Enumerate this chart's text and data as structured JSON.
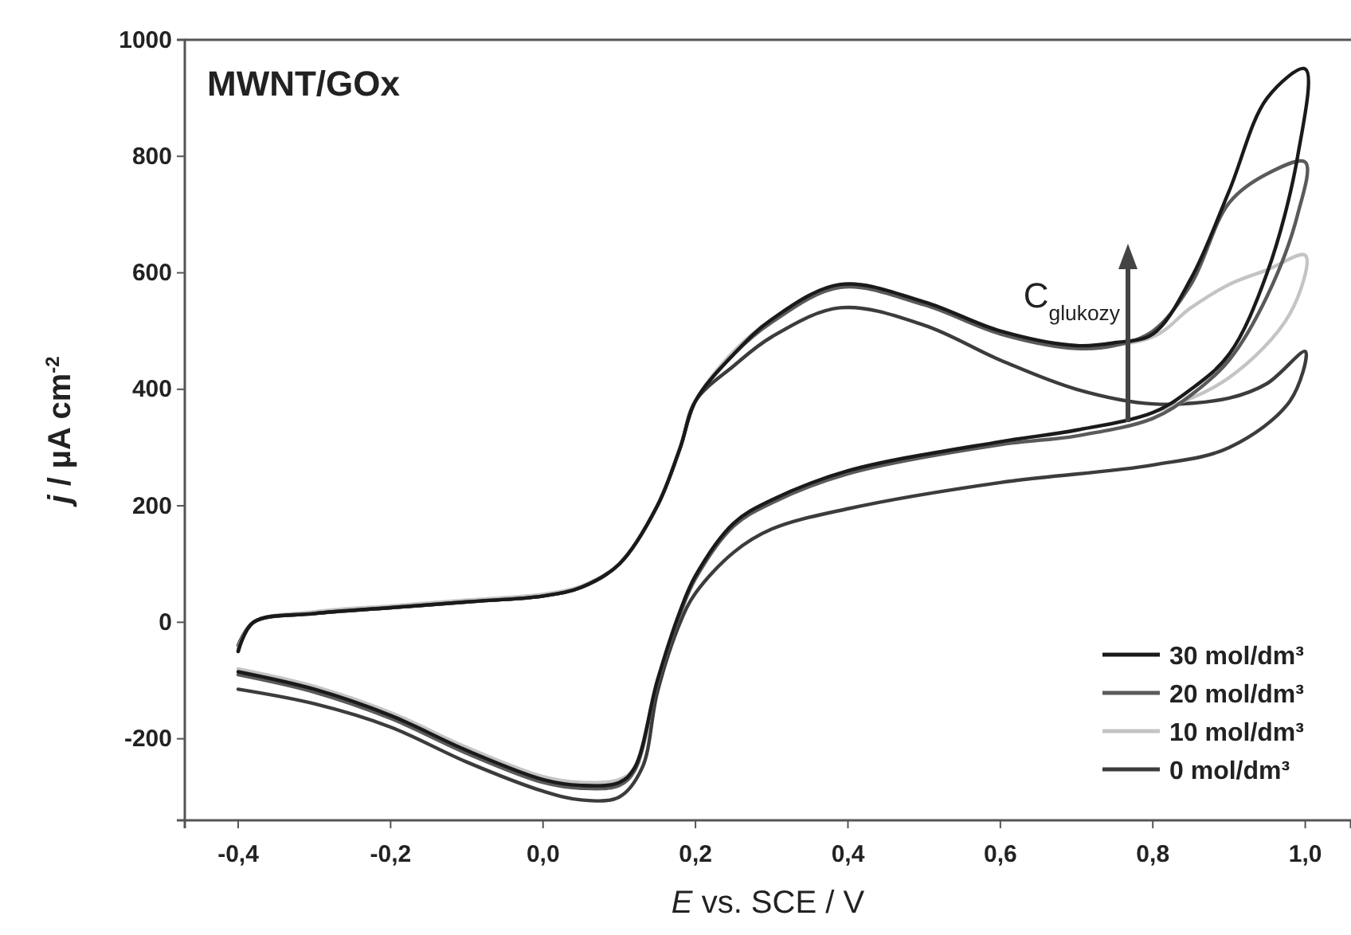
{
  "chart_data": {
    "type": "line",
    "title": "MWNT/GOx",
    "xlabel": "E vs. SCE / V",
    "ylabel": "j / µA cm$^{-2}$",
    "xlim": [
      -0.47,
      1.06
    ],
    "ylim": [
      -340,
      1000
    ],
    "xticks": [
      {
        "value": -0.4,
        "label": "-0,4"
      },
      {
        "value": -0.2,
        "label": "-0,2"
      },
      {
        "value": 0,
        "label": "0,0"
      },
      {
        "value": 0.2,
        "label": "0,2"
      },
      {
        "value": 0.4,
        "label": "0,4"
      },
      {
        "value": 0.6,
        "label": "0,6"
      },
      {
        "value": 0.8,
        "label": "0,8"
      },
      {
        "value": 1,
        "label": "1,0"
      }
    ],
    "yticks": [
      -200,
      0,
      200,
      400,
      600,
      800,
      1000
    ],
    "grid": false,
    "legend": "bottom right",
    "line_style": "solid",
    "marker": "none",
    "annotations": [
      "C$_{glukozy}$"
    ],
    "series": [
      {
        "name": "30 mol/dm³",
        "color": "#1a1a1a",
        "x": [
          -0.4,
          -0.38,
          -0.3,
          -0.2,
          -0.1,
          0,
          0.05,
          0.1,
          0.15,
          0.18,
          0.2,
          0.25,
          0.3,
          0.39,
          0.5,
          0.6,
          0.7,
          0.75,
          0.8,
          0.85,
          0.9,
          0.95,
          1,
          0.99,
          0.95,
          0.9,
          0.85,
          0.8,
          0.7,
          0.6,
          0.4,
          0.3,
          0.25,
          0.2,
          0.18,
          0.15,
          0.12,
          0.1,
          0.05,
          0,
          -0.1,
          -0.2,
          -0.3,
          -0.4
        ],
        "values": [
          -50,
          0,
          15,
          25,
          35,
          45,
          60,
          100,
          200,
          300,
          380,
          460,
          520,
          580,
          550,
          500,
          475,
          480,
          495,
          590,
          740,
          900,
          950,
          800,
          600,
          460,
          400,
          360,
          330,
          310,
          260,
          210,
          170,
          80,
          20,
          -100,
          -250,
          -275,
          -280,
          -270,
          -220,
          -160,
          -115,
          -85
        ]
      },
      {
        "name": "20 mol/dm³",
        "color": "#5a5a5a",
        "x": [
          -0.4,
          -0.38,
          -0.3,
          -0.2,
          -0.1,
          0,
          0.05,
          0.1,
          0.15,
          0.18,
          0.2,
          0.25,
          0.3,
          0.39,
          0.5,
          0.6,
          0.7,
          0.75,
          0.8,
          0.85,
          0.9,
          0.95,
          1,
          0.99,
          0.95,
          0.9,
          0.85,
          0.8,
          0.7,
          0.6,
          0.4,
          0.3,
          0.25,
          0.2,
          0.18,
          0.15,
          0.12,
          0.1,
          0.05,
          0,
          -0.1,
          -0.2,
          -0.3,
          -0.4
        ],
        "values": [
          -50,
          0,
          15,
          25,
          35,
          45,
          60,
          100,
          200,
          300,
          380,
          460,
          515,
          575,
          545,
          495,
          470,
          475,
          500,
          580,
          720,
          770,
          790,
          700,
          560,
          450,
          390,
          350,
          320,
          305,
          255,
          205,
          165,
          75,
          15,
          -105,
          -255,
          -280,
          -285,
          -275,
          -225,
          -165,
          -120,
          -90
        ]
      },
      {
        "name": "10 mol/dm³",
        "color": "#c4c4c4",
        "x": [
          -0.4,
          -0.38,
          -0.3,
          -0.2,
          -0.1,
          0,
          0.05,
          0.1,
          0.15,
          0.18,
          0.2,
          0.25,
          0.3,
          0.39,
          0.5,
          0.6,
          0.7,
          0.8,
          0.85,
          0.9,
          0.95,
          1,
          0.98,
          0.9,
          0.8,
          0.7,
          0.6,
          0.4,
          0.3,
          0.25,
          0.2,
          0.18,
          0.15,
          0.12,
          0.1,
          0.05,
          0,
          -0.1,
          -0.2,
          -0.3,
          -0.4
        ],
        "values": [
          -45,
          0,
          18,
          28,
          38,
          48,
          62,
          100,
          200,
          300,
          380,
          465,
          520,
          580,
          550,
          500,
          475,
          490,
          540,
          580,
          605,
          630,
          530,
          420,
          360,
          330,
          310,
          260,
          210,
          170,
          80,
          20,
          -100,
          -250,
          -270,
          -275,
          -265,
          -215,
          -155,
          -110,
          -80
        ]
      },
      {
        "name": "0 mol/dm³",
        "color": "#3c3c3c",
        "x": [
          -0.4,
          -0.38,
          -0.3,
          -0.2,
          -0.1,
          0,
          0.05,
          0.1,
          0.15,
          0.18,
          0.2,
          0.25,
          0.3,
          0.39,
          0.5,
          0.6,
          0.7,
          0.8,
          0.9,
          0.95,
          1,
          0.98,
          0.9,
          0.8,
          0.6,
          0.4,
          0.3,
          0.25,
          0.2,
          0.18,
          0.15,
          0.13,
          0.1,
          0.05,
          0,
          -0.1,
          -0.2,
          -0.3,
          -0.4
        ],
        "values": [
          -40,
          0,
          15,
          25,
          35,
          45,
          60,
          100,
          200,
          300,
          380,
          440,
          490,
          540,
          510,
          450,
          400,
          375,
          385,
          410,
          465,
          380,
          300,
          270,
          240,
          195,
          160,
          120,
          50,
          0,
          -120,
          -250,
          -300,
          -305,
          -290,
          -240,
          -180,
          -140,
          -115
        ]
      }
    ]
  }
}
